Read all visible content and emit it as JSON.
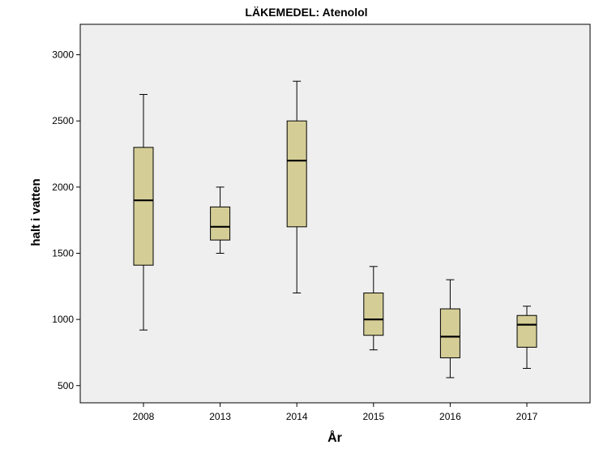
{
  "chart_data": {
    "type": "boxplot",
    "title": "LÄKEMEDEL: Atenolol",
    "xlabel": "År",
    "ylabel": "halt i vatten",
    "ylim": [
      370,
      3230
    ],
    "yticks": [
      500,
      1000,
      1500,
      2000,
      2500,
      3000
    ],
    "grid": false,
    "background": "#efefef",
    "box_color": "#d4cd96",
    "categories": [
      "2008",
      "2013",
      "2014",
      "2015",
      "2016",
      "2017"
    ],
    "boxes": [
      {
        "category": "2008",
        "whisker_low": 920,
        "q1": 1410,
        "median": 1900,
        "q3": 2300,
        "whisker_high": 2700
      },
      {
        "category": "2013",
        "whisker_low": 1500,
        "q1": 1600,
        "median": 1700,
        "q3": 1850,
        "whisker_high": 2000
      },
      {
        "category": "2014",
        "whisker_low": 1200,
        "q1": 1700,
        "median": 2200,
        "q3": 2500,
        "whisker_high": 2800
      },
      {
        "category": "2015",
        "whisker_low": 770,
        "q1": 880,
        "median": 1000,
        "q3": 1200,
        "whisker_high": 1400
      },
      {
        "category": "2016",
        "whisker_low": 560,
        "q1": 710,
        "median": 870,
        "q3": 1080,
        "whisker_high": 1300
      },
      {
        "category": "2017",
        "whisker_low": 630,
        "q1": 790,
        "median": 960,
        "q3": 1030,
        "whisker_high": 1100
      }
    ]
  }
}
